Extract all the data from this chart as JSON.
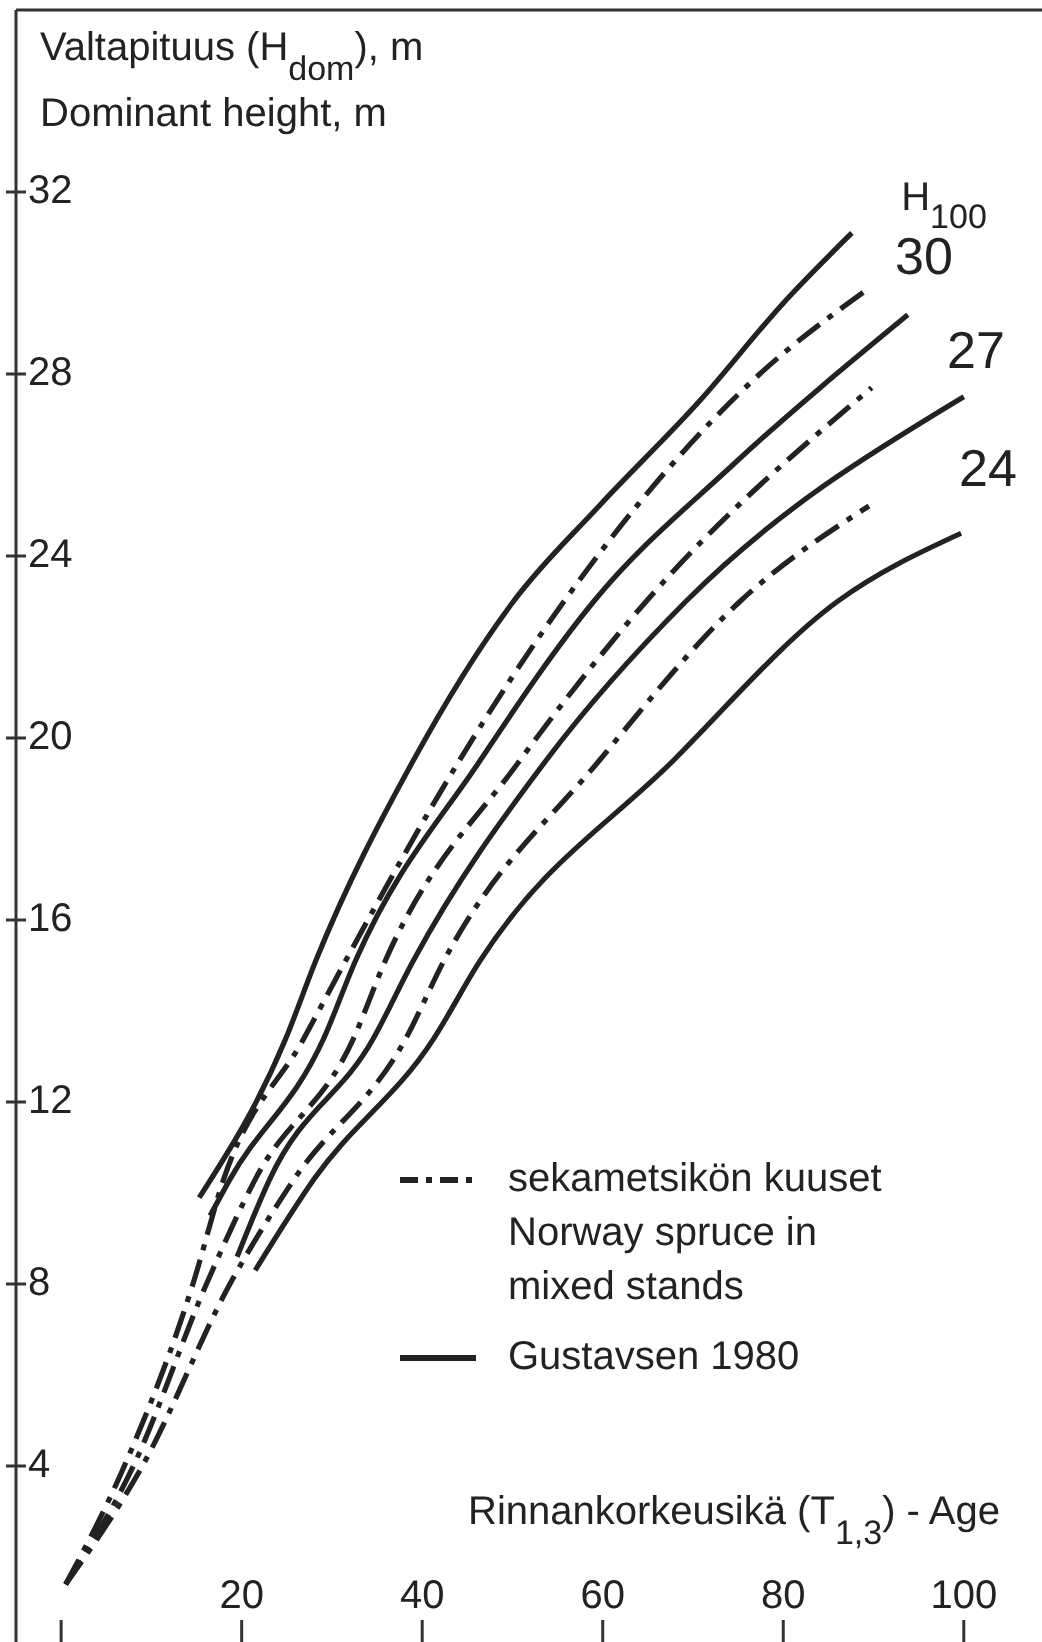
{
  "chart_data": {
    "type": "line",
    "ylabel": "Valtapituus (H$_{dom}$), m\nDominant height, m",
    "xlabel": "Rinnankorkeusikä (T$_{1,3}$) - Age",
    "xlim": [
      -5,
      108
    ],
    "xticks": [
      {
        "value": 0,
        "label": null
      },
      20,
      40,
      60,
      80,
      100
    ],
    "ylim": [
      0,
      36
    ],
    "yticks": [
      4,
      8,
      12,
      16,
      20,
      24,
      28,
      32
    ],
    "grid": false,
    "legend": "bottom right",
    "marker": "none",
    "series": [
      {
        "name": "sekametsikön kuuset\nNorway spruce in\nmixed stands",
        "color": "#222222",
        "line_style": "dashed",
        "x": [
          0.5,
          7,
          14.6,
          18,
          26.9,
          31.5,
          44.1,
          55.7,
          77.4,
          88.9
        ],
        "values": [
          1.4,
          4,
          8,
          10.3,
          13.4,
          15.1,
          19.5,
          23,
          28,
          29.8
        ]
      },
      {
        "color": "#222222",
        "line_style": "dashed",
        "x": [
          0.5,
          8,
          16.1,
          21.5,
          32.4,
          35.9,
          50.8,
          64.8,
          89.8
        ],
        "values": [
          1.4,
          4,
          8,
          10.3,
          13.4,
          15.1,
          19.5,
          23,
          27.7
        ]
      },
      {
        "color": "#222222",
        "line_style": "dashed",
        "x": [
          0.5,
          9,
          18.7,
          25.8,
          38.2,
          42.4,
          59.6,
          75.2,
          89.5
        ],
        "values": [
          1.4,
          4,
          8,
          10.3,
          13.4,
          15.1,
          19.5,
          23,
          25.1
        ]
      },
      {
        "name": "Gustavsen 1980",
        "color": "#222222",
        "line_style": "solid",
        "x": [
          15.3,
          24.9,
          28.2,
          39,
          50.1,
          59.6,
          70.7,
          80.2,
          87.6
        ],
        "values": [
          9.9,
          13.4,
          15.1,
          19.5,
          23,
          25.1,
          27.4,
          29.6,
          31.1
        ]
      },
      {
        "color": "#222222",
        "line_style": "solid",
        "x": [
          16.5,
          18.7,
          29.1,
          32.6,
          46.4,
          59,
          74.4,
          93.8
        ],
        "values": [
          9.5,
          10.3,
          13.4,
          15.1,
          19.5,
          23,
          26,
          29.3
        ]
      },
      {
        "color": "#222222",
        "line_style": "solid",
        "x": [
          19.5,
          23.1,
          34.6,
          39,
          53.7,
          69.2,
          100
        ],
        "values": [
          8.6,
          10.3,
          13.4,
          15.1,
          19.5,
          23,
          27.5
        ]
      },
      {
        "color": "#222222",
        "line_style": "solid",
        "x": [
          21.5,
          28,
          41.3,
          46.4,
          67.8,
          86,
          99.7
        ],
        "values": [
          8.3,
          10.3,
          13.4,
          15.1,
          19.5,
          23,
          24.5
        ]
      }
    ],
    "annotations": [
      "H$_{100}$",
      "30",
      "27",
      "24"
    ]
  }
}
